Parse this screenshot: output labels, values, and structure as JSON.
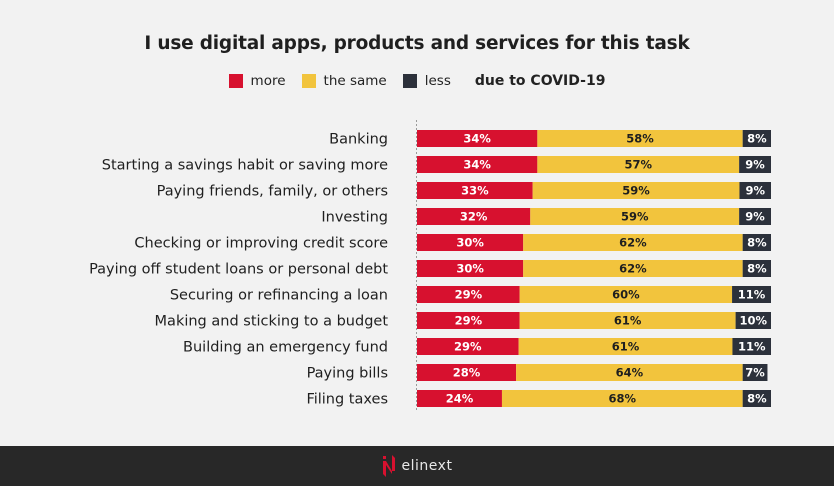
{
  "colors": {
    "more": "#d7112f",
    "same": "#f2c43d",
    "less": "#2c313b",
    "axis": "#9a9a9a",
    "footer_bg": "#282828"
  },
  "footer": {
    "brand": "elinext"
  },
  "chart_data": {
    "type": "bar",
    "orientation": "horizontal",
    "stacked": true,
    "title": "I use digital apps, products and services for this task",
    "legend": {
      "placement": "top-center",
      "entries": [
        "more",
        "the same",
        "less"
      ],
      "suffix": "due to COVID-19"
    },
    "xlabel": "",
    "ylabel": "",
    "unit": "%",
    "grid": false,
    "categories": [
      "Banking",
      "Starting a savings habit or saving more",
      "Paying friends, family, or others",
      "Investing",
      "Checking or improving credit score",
      "Paying off student loans or personal debt",
      "Securing or refinancing a loan",
      "Making and sticking to a budget",
      "Building an emergency fund",
      "Paying bills",
      "Filing taxes"
    ],
    "series": [
      {
        "name": "more",
        "values": [
          34,
          34,
          33,
          32,
          30,
          30,
          29,
          29,
          29,
          28,
          24
        ]
      },
      {
        "name": "the same",
        "values": [
          58,
          57,
          59,
          59,
          62,
          62,
          60,
          61,
          61,
          64,
          68
        ]
      },
      {
        "name": "less",
        "values": [
          8,
          9,
          9,
          9,
          8,
          8,
          11,
          10,
          11,
          7,
          8
        ]
      }
    ]
  }
}
